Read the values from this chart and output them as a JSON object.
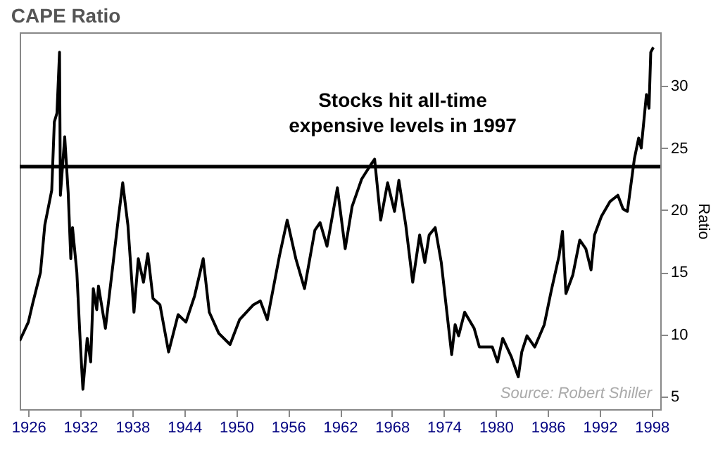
{
  "chart_data": {
    "type": "line",
    "title": "CAPE Ratio",
    "ylabel": "Ratio",
    "x": [
      1925.0,
      1926.0,
      1926.5,
      1927.4,
      1927.9,
      1928.7,
      1929.0,
      1929.3,
      1929.6,
      1929.7,
      1930.2,
      1930.6,
      1930.9,
      1931.1,
      1931.6,
      1932.0,
      1932.3,
      1932.8,
      1933.2,
      1933.5,
      1933.9,
      1934.1,
      1934.9,
      1935.8,
      1936.3,
      1936.9,
      1937.5,
      1938.2,
      1938.7,
      1939.3,
      1939.8,
      1940.4,
      1941.2,
      1942.2,
      1943.3,
      1944.2,
      1945.2,
      1946.2,
      1946.9,
      1948.0,
      1949.3,
      1950.4,
      1952.0,
      1952.8,
      1953.6,
      1955.0,
      1955.9,
      1956.9,
      1957.9,
      1959.1,
      1959.7,
      1960.5,
      1961.7,
      1962.6,
      1963.4,
      1964.5,
      1965.6,
      1966.0,
      1966.7,
      1967.5,
      1968.3,
      1968.8,
      1969.6,
      1970.4,
      1971.2,
      1971.8,
      1972.3,
      1973.0,
      1973.7,
      1974.2,
      1974.9,
      1975.3,
      1975.7,
      1976.4,
      1977.5,
      1978.1,
      1979.6,
      1980.2,
      1980.8,
      1981.8,
      1982.6,
      1983.0,
      1983.6,
      1984.5,
      1985.6,
      1986.4,
      1987.3,
      1987.7,
      1988.1,
      1988.9,
      1989.7,
      1990.4,
      1991.0,
      1991.4,
      1992.2,
      1993.2,
      1994.1,
      1994.7,
      1995.2,
      1996.0,
      1996.5,
      1996.8,
      1997.4,
      1997.7,
      1997.9,
      1998.2
    ],
    "series": [
      {
        "color": "#000000",
        "values": [
          9.5,
          11.0,
          12.5,
          15.0,
          18.8,
          21.6,
          27.1,
          27.8,
          32.7,
          21.2,
          25.9,
          21.4,
          16.1,
          18.6,
          15.0,
          9.3,
          5.6,
          9.7,
          7.8,
          13.7,
          12.0,
          13.9,
          10.5,
          15.8,
          18.8,
          22.2,
          18.8,
          11.8,
          16.1,
          14.2,
          16.5,
          12.9,
          12.4,
          8.6,
          11.6,
          11.0,
          13.1,
          16.1,
          11.8,
          10.1,
          9.2,
          11.2,
          12.4,
          12.7,
          11.2,
          16.3,
          19.2,
          16.1,
          13.7,
          18.4,
          19.0,
          17.1,
          21.8,
          16.9,
          20.3,
          22.5,
          23.7,
          24.1,
          19.2,
          22.2,
          19.9,
          22.4,
          18.8,
          14.2,
          18.0,
          15.8,
          18.0,
          18.6,
          15.8,
          12.7,
          8.4,
          10.8,
          9.9,
          11.8,
          10.5,
          9.0,
          9.0,
          7.8,
          9.7,
          8.2,
          6.6,
          8.6,
          9.9,
          9.0,
          10.8,
          13.5,
          16.3,
          18.3,
          13.3,
          14.8,
          17.6,
          16.9,
          15.2,
          18.0,
          19.5,
          20.7,
          21.2,
          20.1,
          19.9,
          24.1,
          25.8,
          25.0,
          29.3,
          28.2,
          32.7,
          33.1
        ]
      }
    ],
    "xlim": [
      1925,
      1999
    ],
    "xticks": [
      1926,
      1932,
      1938,
      1944,
      1950,
      1956,
      1962,
      1968,
      1974,
      1980,
      1986,
      1992,
      1998
    ],
    "ylim": [
      4,
      34.3
    ],
    "yticks": [
      5,
      10,
      15,
      20,
      25,
      30
    ],
    "ref_lines": [
      {
        "axis": "y",
        "value": 23.5,
        "color": "#000000"
      }
    ],
    "annotations": [
      "Stocks hit all-time\nexpensive levels in 1997",
      "Source: Robert Shiller"
    ],
    "grid": false
  }
}
